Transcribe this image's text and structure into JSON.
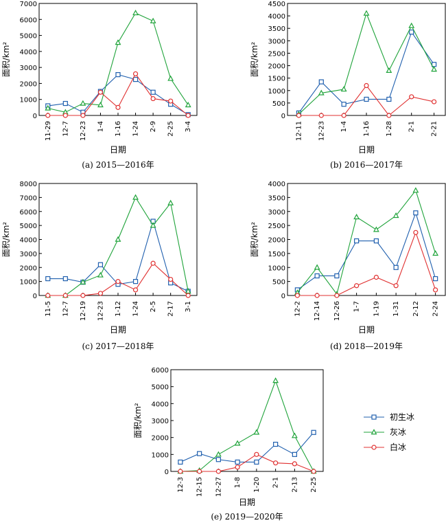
{
  "colors": {
    "new_ice": "#1f5fae",
    "gray_ice": "#1fa33a",
    "white_ice": "#e03030"
  },
  "legend": [
    {
      "key": "new_ice",
      "label": "初生冰",
      "marker": "square"
    },
    {
      "key": "gray_ice",
      "label": "灰冰",
      "marker": "triangle"
    },
    {
      "key": "white_ice",
      "label": "白冰",
      "marker": "circle"
    }
  ],
  "chart_data": [
    {
      "type": "line",
      "caption": "(a) 2015—2016年",
      "xlabel": "日期",
      "ylabel": "面积/km²",
      "ylim": [
        0,
        7000
      ],
      "yticks": [
        0,
        1000,
        2000,
        3000,
        4000,
        5000,
        6000,
        7000
      ],
      "x": [
        "11-29",
        "12-7",
        "12-23",
        "1-4",
        "1-16",
        "1-24",
        "2-9",
        "2-25",
        "3-4"
      ],
      "series": [
        {
          "name": "初生冰",
          "key": "new_ice",
          "values": [
            600,
            750,
            200,
            1500,
            2550,
            2250,
            1450,
            700,
            50
          ]
        },
        {
          "name": "灰冰",
          "key": "gray_ice",
          "values": [
            450,
            200,
            750,
            650,
            4550,
            6400,
            5900,
            2300,
            650
          ]
        },
        {
          "name": "白冰",
          "key": "white_ice",
          "values": [
            0,
            0,
            0,
            1450,
            500,
            2600,
            1050,
            900,
            0
          ]
        }
      ]
    },
    {
      "type": "line",
      "caption": "(b) 2016—2017年",
      "xlabel": "日期",
      "ylabel": "面积/km²",
      "ylim": [
        0,
        4500
      ],
      "yticks": [
        0,
        500,
        1000,
        1500,
        2000,
        2500,
        3000,
        3500,
        4000,
        4500
      ],
      "x": [
        "12-11",
        "12-23",
        "1-4",
        "1-16",
        "1-28",
        "2-1",
        "2-21"
      ],
      "series": [
        {
          "name": "初生冰",
          "key": "new_ice",
          "values": [
            100,
            1350,
            450,
            650,
            650,
            3350,
            2050
          ]
        },
        {
          "name": "灰冰",
          "key": "gray_ice",
          "values": [
            50,
            900,
            1050,
            4100,
            1800,
            3600,
            1850
          ]
        },
        {
          "name": "白冰",
          "key": "white_ice",
          "values": [
            0,
            0,
            0,
            1200,
            0,
            750,
            550
          ]
        }
      ]
    },
    {
      "type": "line",
      "caption": "(c) 2017—2018年",
      "xlabel": "日期",
      "ylabel": "面积/km²",
      "ylim": [
        0,
        8000
      ],
      "yticks": [
        0,
        1000,
        2000,
        3000,
        4000,
        5000,
        6000,
        7000,
        8000
      ],
      "x": [
        "11-5",
        "12-7",
        "12-19",
        "12-23",
        "1-12",
        "1-24",
        "2-5",
        "2-17",
        "3-1"
      ],
      "series": [
        {
          "name": "初生冰",
          "key": "new_ice",
          "values": [
            1200,
            1200,
            950,
            2200,
            800,
            1000,
            5300,
            900,
            300
          ]
        },
        {
          "name": "灰冰",
          "key": "gray_ice",
          "values": [
            0,
            0,
            950,
            1450,
            4000,
            7000,
            5000,
            6600,
            300
          ]
        },
        {
          "name": "白冰",
          "key": "white_ice",
          "values": [
            0,
            0,
            0,
            150,
            1000,
            400,
            2300,
            1150,
            0
          ]
        }
      ]
    },
    {
      "type": "line",
      "caption": "(d) 2018—2019年",
      "xlabel": "日期",
      "ylabel": "面积/km²",
      "ylim": [
        0,
        4000
      ],
      "yticks": [
        0,
        500,
        1000,
        1500,
        2000,
        2500,
        3000,
        3500,
        4000
      ],
      "x": [
        "12-2",
        "12-14",
        "12-26",
        "1-7",
        "1-19",
        "1-31",
        "2-12",
        "2-24"
      ],
      "series": [
        {
          "name": "初生冰",
          "key": "new_ice",
          "values": [
            200,
            700,
            700,
            1950,
            1950,
            1000,
            2950,
            600
          ]
        },
        {
          "name": "灰冰",
          "key": "gray_ice",
          "values": [
            100,
            1000,
            50,
            2800,
            2350,
            2850,
            3750,
            1500
          ]
        },
        {
          "name": "白冰",
          "key": "white_ice",
          "values": [
            0,
            0,
            0,
            350,
            650,
            350,
            2250,
            200
          ]
        }
      ]
    },
    {
      "type": "line",
      "caption": "(e) 2019—2020年",
      "xlabel": "日期",
      "ylabel": "面积/km²",
      "ylim": [
        0,
        6000
      ],
      "yticks": [
        0,
        1000,
        2000,
        3000,
        4000,
        5000,
        6000
      ],
      "x": [
        "12-3",
        "12-15",
        "12-27",
        "1-8",
        "1-20",
        "2-1",
        "2-13",
        "2-25"
      ],
      "series": [
        {
          "name": "初生冰",
          "key": "new_ice",
          "values": [
            550,
            1050,
            700,
            550,
            550,
            1600,
            1000,
            2300
          ]
        },
        {
          "name": "灰冰",
          "key": "gray_ice",
          "values": [
            0,
            50,
            1000,
            1650,
            2300,
            5350,
            2100,
            0
          ]
        },
        {
          "name": "白冰",
          "key": "white_ice",
          "values": [
            0,
            0,
            0,
            250,
            1000,
            500,
            450,
            0
          ]
        }
      ]
    }
  ]
}
